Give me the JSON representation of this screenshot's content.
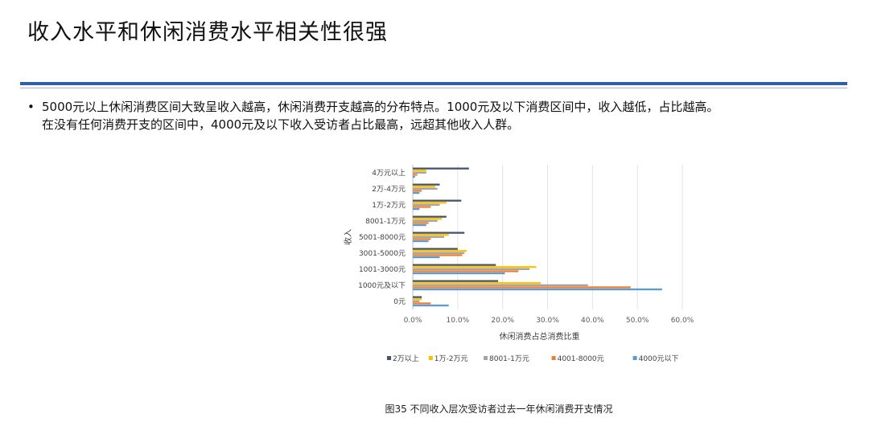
{
  "page": {
    "title": "收入水平和休闲消费水平相关性很强",
    "bullet_marker": "•",
    "bullet_line1": "5000元以上休闲消费区间大致呈收入越高，休闲消费开支越高的分布特点。1000元及以下消费区间中，收入越低，占比越高。",
    "bullet_line2": "在没有任何消费开支的区间中，4000元及以下收入受访者占比最高，远超其他收入人群。",
    "caption": "图35 不同收入层次受访者过去一年休闲消费开支情况"
  },
  "chart_data": {
    "type": "bar",
    "orientation": "horizontal",
    "categories": [
      "4万元以上",
      "2万-4万元",
      "1万-2万元",
      "8001-1万元",
      "5001-8000元",
      "3001-5000元",
      "1001-3000元",
      "1000元及以下",
      "0元"
    ],
    "series": [
      {
        "name": "2万以上",
        "color": "#44546a",
        "values": [
          12.5,
          6.0,
          10.8,
          7.5,
          11.5,
          10.0,
          18.5,
          19.0,
          2.0
        ]
      },
      {
        "name": "1万-2万元",
        "color": "#ffc000",
        "values": [
          3.0,
          5.0,
          7.5,
          6.5,
          8.0,
          12.0,
          27.5,
          28.5,
          2.0
        ]
      },
      {
        "name": "8001-1万元",
        "color": "#a5a5a5",
        "values": [
          3.0,
          5.5,
          6.0,
          5.5,
          7.0,
          11.5,
          26.0,
          39.0,
          1.5
        ]
      },
      {
        "name": "4001-8000元",
        "color": "#ed7d31",
        "values": [
          1.0,
          2.0,
          4.0,
          3.5,
          4.0,
          11.0,
          23.5,
          48.5,
          4.0
        ]
      },
      {
        "name": "4000元以下",
        "color": "#5b9bd5",
        "values": [
          0.5,
          1.5,
          1.5,
          3.0,
          3.5,
          6.0,
          20.5,
          55.5,
          8.0
        ]
      }
    ],
    "xlabel": "休闲消费占总消费比重",
    "ylabel": "收入",
    "xlim": [
      0,
      60
    ],
    "xticks": [
      "0.0%",
      "10.0%",
      "20.0%",
      "30.0%",
      "40.0%",
      "50.0%",
      "60.0%"
    ],
    "grid": true,
    "legend_position": "bottom"
  }
}
